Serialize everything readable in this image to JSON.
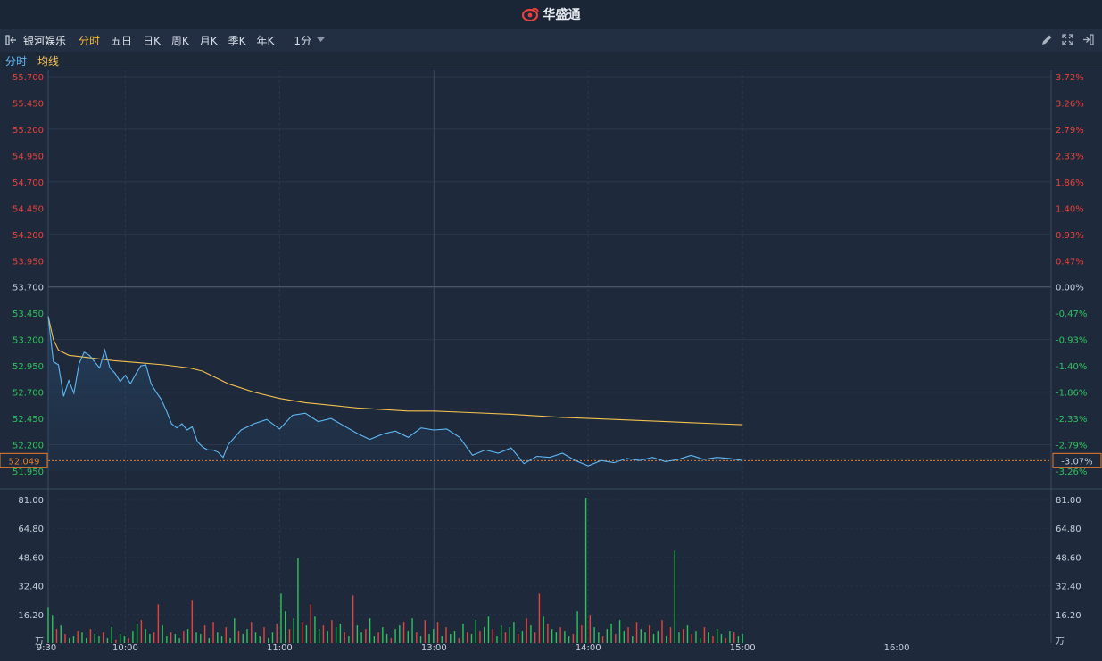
{
  "header": {
    "brand": "华盛通"
  },
  "toolbar": {
    "stock_name": "银河娱乐",
    "tabs": [
      "分时",
      "五日",
      "日K",
      "周K",
      "月K",
      "季K",
      "年K"
    ],
    "active_tab": "分时",
    "interval": "1分"
  },
  "legend": {
    "price_label": "分时",
    "avg_label": "均线"
  },
  "colors": {
    "up": "#e8413b",
    "down": "#2fc25b",
    "neutral": "#c8d0dc",
    "price_line": "#5fb8f5",
    "avg_line": "#f3c04f",
    "last_price": "#e87d2c"
  },
  "chart_data": {
    "type": "line",
    "price_axis_labels": [
      "55.700",
      "55.450",
      "55.200",
      "54.950",
      "54.700",
      "54.450",
      "54.200",
      "53.950",
      "53.700",
      "53.450",
      "53.200",
      "52.950",
      "52.700",
      "52.450",
      "52.200",
      "51.950"
    ],
    "pct_axis_labels": [
      "3.72%",
      "3.26%",
      "2.79%",
      "2.33%",
      "1.86%",
      "1.40%",
      "0.93%",
      "0.47%",
      "0.00%",
      "-0.47%",
      "-0.93%",
      "-1.40%",
      "-1.86%",
      "-2.33%",
      "-2.79%",
      "-3.26%"
    ],
    "prev_close": 53.7,
    "last_price": 52.049,
    "last_price_label": "52.049",
    "last_pct_label": "-3.07%",
    "ylim": [
      51.95,
      55.7
    ],
    "x_time_labels": [
      "9:30",
      "10:00",
      "11:00",
      "13:00",
      "14:00",
      "15:00",
      "16:00"
    ],
    "volume_axis_labels": [
      "81.00",
      "64.80",
      "48.60",
      "32.40",
      "16.20"
    ],
    "volume_unit": "万",
    "volume_ylim": [
      0,
      81
    ],
    "price_series_minutes": [
      0,
      2,
      4,
      6,
      8,
      10,
      12,
      14,
      16,
      18,
      20,
      22,
      24,
      26,
      28,
      30,
      32,
      34,
      36,
      38,
      40,
      42,
      44,
      46,
      48,
      50,
      52,
      54,
      56,
      58,
      60,
      62,
      64,
      66,
      68,
      70,
      75,
      80,
      85,
      90,
      95,
      100,
      105,
      110,
      115,
      120,
      125,
      130,
      135,
      140,
      145,
      150,
      155,
      160,
      165,
      170,
      175,
      180,
      185,
      190,
      195,
      200,
      205,
      210,
      215,
      220,
      225,
      230,
      235,
      240,
      245,
      250,
      255,
      260,
      265,
      270
    ],
    "price_values": [
      53.42,
      52.99,
      52.96,
      52.66,
      52.81,
      52.69,
      52.97,
      53.08,
      53.05,
      52.99,
      52.93,
      53.1,
      52.93,
      52.88,
      52.8,
      52.86,
      52.78,
      52.87,
      52.95,
      52.96,
      52.78,
      52.7,
      52.63,
      52.52,
      52.4,
      52.36,
      52.4,
      52.34,
      52.37,
      52.23,
      52.18,
      52.15,
      52.15,
      52.13,
      52.08,
      52.2,
      52.34,
      52.4,
      52.44,
      52.35,
      52.48,
      52.5,
      52.42,
      52.45,
      52.38,
      52.31,
      52.25,
      52.3,
      52.33,
      52.27,
      52.36,
      52.34,
      52.35,
      52.27,
      52.1,
      52.15,
      52.12,
      52.17,
      52.02,
      52.09,
      52.08,
      52.12,
      52.05,
      52.0,
      52.05,
      52.03,
      52.07,
      52.05,
      52.08,
      52.04,
      52.06,
      52.1,
      52.06,
      52.08,
      52.07,
      52.05
    ],
    "avg_series_minutes": [
      0,
      2,
      4,
      8,
      15,
      25,
      35,
      45,
      55,
      60,
      65,
      70,
      80,
      90,
      100,
      120,
      140,
      150,
      160,
      180,
      200,
      220,
      240,
      250,
      260,
      270
    ],
    "avg_values": [
      53.42,
      53.2,
      53.1,
      53.05,
      53.03,
      53.0,
      52.98,
      52.96,
      52.93,
      52.9,
      52.84,
      52.78,
      52.7,
      52.64,
      52.6,
      52.55,
      52.52,
      52.52,
      52.51,
      52.49,
      52.46,
      52.44,
      52.42,
      52.41,
      52.4,
      52.39
    ],
    "volume_values": [
      20,
      16,
      8,
      10,
      5,
      3,
      4,
      7,
      6,
      3,
      8,
      5,
      4,
      6,
      3,
      9,
      2,
      5,
      4,
      3,
      7,
      11,
      13,
      8,
      5,
      6,
      22,
      10,
      4,
      6,
      5,
      3,
      7,
      8,
      24,
      6,
      5,
      10,
      3,
      12,
      6,
      4,
      9,
      3,
      14,
      7,
      5,
      8,
      12,
      6,
      4,
      9,
      3,
      6,
      11,
      28,
      18,
      8,
      14,
      48,
      12,
      10,
      22,
      15,
      8,
      10,
      7,
      13,
      9,
      11,
      6,
      4,
      27,
      10,
      6,
      8,
      14,
      4,
      6,
      9,
      5,
      3,
      8,
      10,
      12,
      7,
      14,
      6,
      4,
      13,
      5,
      8,
      12,
      4,
      9,
      5,
      7,
      3,
      11,
      6,
      5,
      13,
      7,
      9,
      15,
      8,
      4,
      10,
      6,
      9,
      12,
      5,
      7,
      14,
      10,
      6,
      28,
      15,
      11,
      8,
      6,
      9,
      7,
      4,
      5,
      18,
      10,
      82,
      16,
      9,
      6,
      4,
      8,
      11,
      5,
      13,
      7,
      9,
      4,
      12,
      8,
      6,
      10,
      5,
      7,
      13,
      4,
      9,
      52,
      6,
      8,
      10,
      5,
      7,
      3,
      9,
      6,
      4,
      8,
      5,
      3,
      7,
      6,
      4,
      5
    ],
    "volume_colors_up_mask": [
      0,
      0,
      1,
      0,
      1,
      0,
      0,
      1,
      0,
      0,
      1,
      0,
      0,
      1,
      0,
      0,
      1,
      0,
      0,
      1,
      0,
      0,
      1,
      0,
      0,
      1,
      1,
      0,
      0,
      1,
      0,
      0,
      1,
      0,
      1,
      0,
      0,
      1,
      0,
      1,
      0,
      0,
      1,
      0,
      0,
      1,
      0,
      0,
      1,
      0,
      0,
      1,
      0,
      0,
      1,
      0,
      0,
      1,
      0,
      0,
      1,
      0,
      1,
      0,
      0,
      1,
      0,
      1,
      0,
      0,
      1,
      0,
      1,
      0,
      0,
      1,
      0,
      0,
      1,
      0,
      0,
      1,
      0,
      0,
      1,
      0,
      0,
      1,
      0,
      1,
      0,
      0,
      1,
      0,
      1,
      0,
      0,
      1,
      0,
      1,
      0,
      0,
      1,
      0,
      0,
      1,
      0,
      0,
      1,
      0,
      0,
      1,
      0,
      1,
      0,
      1,
      1,
      0,
      1,
      0,
      0,
      1,
      0,
      0,
      1,
      0,
      1,
      0,
      1,
      0,
      0,
      1,
      0,
      0,
      1,
      0,
      0,
      1,
      0,
      1,
      0,
      0,
      1,
      0,
      0,
      1,
      0,
      1,
      0,
      0,
      1,
      0,
      1,
      0,
      0,
      1,
      0,
      1,
      0,
      0,
      1,
      0,
      1,
      0,
      0
    ]
  }
}
